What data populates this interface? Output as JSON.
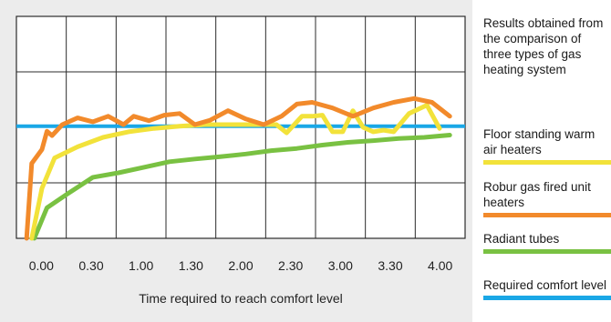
{
  "chart_data": {
    "type": "line",
    "title": "Results obtained from the comparison of three types of gas heating system",
    "xlabel": "Time required to reach comfort level",
    "ylabel": "",
    "x_tick_labels": [
      "0.00",
      "0.30",
      "1.00",
      "1.30",
      "2.00",
      "2.30",
      "3.00",
      "3.30",
      "4.00"
    ],
    "xlim": [
      -0.2,
      8.6
    ],
    "ylim": [
      0,
      4
    ],
    "grid": true,
    "legend_position": "right",
    "reference_line": {
      "name": "Required comfort level",
      "y": 2.02,
      "color": "#1aa7e6"
    },
    "series": [
      {
        "name": "Floor standing warm air heaters",
        "color": "#f2e23a",
        "x": [
          0.1,
          0.3,
          0.55,
          1.0,
          1.5,
          2.0,
          2.5,
          3.0,
          3.5,
          4.0,
          4.5,
          4.9,
          5.1,
          5.4,
          5.6,
          5.8,
          6.0,
          6.2,
          6.4,
          6.6,
          6.8,
          7.0,
          7.2,
          7.5,
          7.85,
          8.1
        ],
        "y": [
          0.0,
          0.9,
          1.45,
          1.65,
          1.82,
          1.92,
          1.98,
          2.02,
          2.05,
          2.05,
          2.05,
          2.05,
          1.9,
          2.2,
          2.2,
          2.22,
          1.92,
          1.92,
          2.3,
          2.0,
          1.92,
          1.95,
          1.92,
          2.25,
          2.4,
          1.98
        ]
      },
      {
        "name": "Robur gas fired unit heaters",
        "color": "#f28a2b",
        "x": [
          0.0,
          0.1,
          0.3,
          0.4,
          0.5,
          0.7,
          1.0,
          1.3,
          1.6,
          1.9,
          2.1,
          2.4,
          2.7,
          3.0,
          3.3,
          3.6,
          3.95,
          4.3,
          4.65,
          5.0,
          5.3,
          5.6,
          6.0,
          6.4,
          6.8,
          7.2,
          7.6,
          7.95,
          8.3
        ],
        "y": [
          0.0,
          1.35,
          1.6,
          1.93,
          1.85,
          2.05,
          2.17,
          2.1,
          2.2,
          2.05,
          2.2,
          2.12,
          2.22,
          2.25,
          2.05,
          2.13,
          2.3,
          2.15,
          2.05,
          2.2,
          2.42,
          2.45,
          2.35,
          2.2,
          2.35,
          2.45,
          2.52,
          2.45,
          2.2
        ]
      },
      {
        "name": "Radiant tubes",
        "color": "#79c142",
        "x": [
          0.15,
          0.4,
          0.8,
          1.3,
          1.8,
          2.3,
          2.8,
          3.3,
          3.8,
          4.3,
          4.8,
          5.3,
          5.8,
          6.3,
          6.8,
          7.3,
          7.8,
          8.3
        ],
        "y": [
          0.0,
          0.55,
          0.8,
          1.1,
          1.18,
          1.28,
          1.38,
          1.43,
          1.47,
          1.52,
          1.58,
          1.62,
          1.68,
          1.73,
          1.76,
          1.8,
          1.82,
          1.86
        ]
      }
    ]
  }
}
